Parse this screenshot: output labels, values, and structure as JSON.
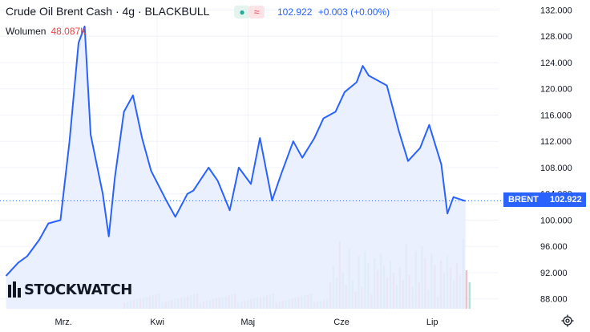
{
  "header": {
    "title": "Crude Oil Brent Cash · 4g · BLACKBULL",
    "price": "102.922",
    "change": "+0.003 (+0.00%)"
  },
  "volume": {
    "label": "Wolumen",
    "value": "48.087K"
  },
  "price_tag": {
    "symbol": "BRENT",
    "value": "102.922"
  },
  "logo": {
    "text": "STOCKWATCH"
  },
  "colors": {
    "line": "#2962ff",
    "fill": "#e8edff",
    "vol_up": "#a5dccf",
    "vol_down": "#f5b3b8"
  },
  "chart_data": {
    "type": "area",
    "x_tick_labels": [
      "Mrz.",
      "Kwi",
      "Maj",
      "Cze",
      "Lip"
    ],
    "y_tick_labels": [
      "88.000",
      "92.000",
      "96.000",
      "100.000",
      "104.000",
      "108.000",
      "112.000",
      "116.000",
      "120.000",
      "124.000",
      "128.000",
      "132.000"
    ],
    "ylim": [
      86.5,
      132.3
    ],
    "x": [
      "2022-02-10",
      "2022-02-14",
      "2022-02-17",
      "2022-02-21",
      "2022-02-24",
      "2022-02-28",
      "2022-03-03",
      "2022-03-06",
      "2022-03-08",
      "2022-03-10",
      "2022-03-14",
      "2022-03-16",
      "2022-03-18",
      "2022-03-21",
      "2022-03-24",
      "2022-03-27",
      "2022-03-30",
      "2022-04-04",
      "2022-04-07",
      "2022-04-11",
      "2022-04-13",
      "2022-04-18",
      "2022-04-21",
      "2022-04-25",
      "2022-04-28",
      "2022-05-02",
      "2022-05-05",
      "2022-05-09",
      "2022-05-12",
      "2022-05-16",
      "2022-05-19",
      "2022-05-23",
      "2022-05-26",
      "2022-05-30",
      "2022-06-02",
      "2022-06-06",
      "2022-06-08",
      "2022-06-10",
      "2022-06-14",
      "2022-06-16",
      "2022-06-20",
      "2022-06-23",
      "2022-06-27",
      "2022-06-30",
      "2022-07-04",
      "2022-07-06",
      "2022-07-08",
      "2022-07-12"
    ],
    "series": [
      {
        "values": [
          91.5,
          93.5,
          94.5,
          97.0,
          99.5,
          100.0,
          112.0,
          127.0,
          129.5,
          113.0,
          104.0,
          97.5,
          106.5,
          116.5,
          119.0,
          112.5,
          107.5,
          103.0,
          100.5,
          104.0,
          104.5,
          108.0,
          106.0,
          101.5,
          108.0,
          105.5,
          112.5,
          103.0,
          107.0,
          112.0,
          109.5,
          112.5,
          115.5,
          116.5,
          119.5,
          121.0,
          123.5,
          122.0,
          121.0,
          120.5,
          113.5,
          109.0,
          111.0,
          114.5,
          108.5,
          101.0,
          103.5,
          102.9
        ]
      }
    ],
    "volume_note": "Wolumen"
  }
}
